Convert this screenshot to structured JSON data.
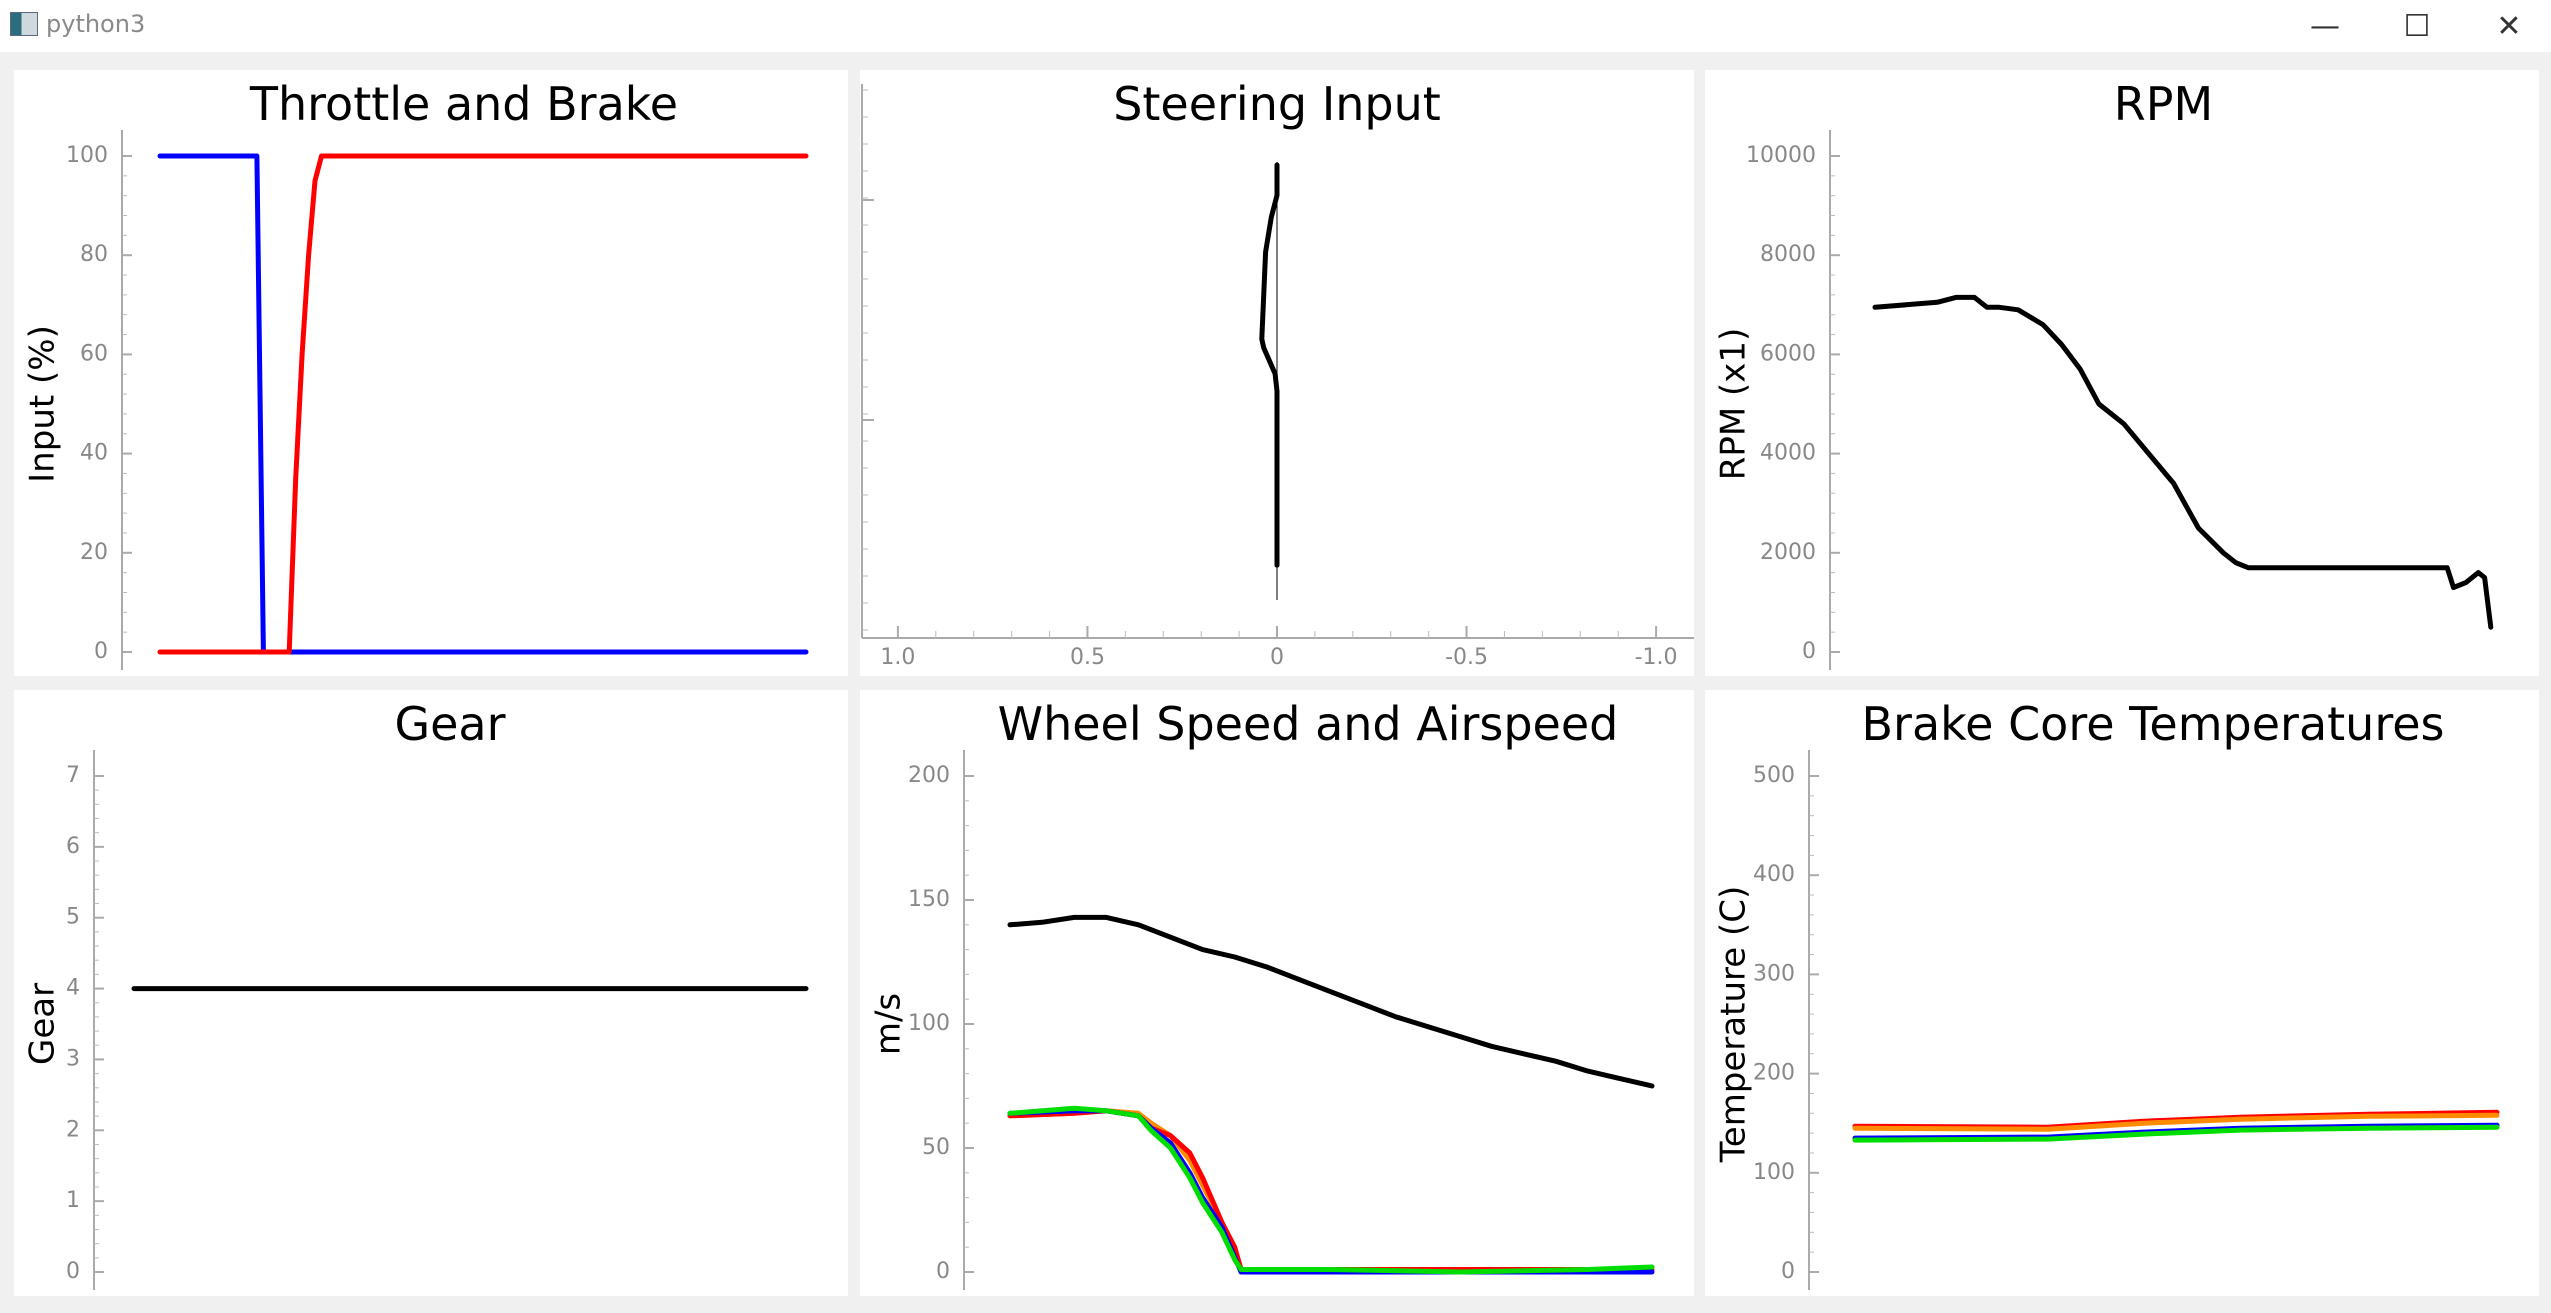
{
  "window": {
    "title": "python3",
    "minimize_glyph": "—",
    "maximize_glyph": "☐",
    "close_glyph": "✕"
  },
  "charts": [
    {
      "key": "throttle_brake",
      "type": "line",
      "title": "Throttle and Brake",
      "ylabel": "Input (%)",
      "xlabel": "",
      "ylim": [
        0,
        100
      ],
      "yticks": [
        0,
        20,
        40,
        60,
        80,
        100
      ],
      "xlim": [
        0,
        100
      ],
      "series": [
        {
          "color": "#0000ff",
          "x": [
            0,
            15,
            16,
            100
          ],
          "y": [
            100,
            100,
            0,
            0
          ]
        },
        {
          "color": "#ff0000",
          "x": [
            0,
            20,
            21,
            22,
            23,
            24,
            25,
            100
          ],
          "y": [
            0,
            0,
            35,
            60,
            80,
            95,
            100,
            100
          ]
        }
      ]
    },
    {
      "key": "steering",
      "type": "line",
      "title": "Steering Input",
      "ylabel": "",
      "xlabel": "",
      "xlim": [
        1.1,
        -1.1
      ],
      "xticks": [
        1.0,
        0.5,
        0,
        -0.5,
        -1.0
      ],
      "xtick_labels": [
        "1.0",
        "0.5",
        "0",
        "-0.5",
        "-1.0"
      ],
      "ylim": [
        0,
        100
      ],
      "series": [
        {
          "color": "#000000",
          "x": [
            0,
            0,
            0.015,
            0.03,
            0.035,
            0.04,
            0.035,
            0.02,
            0.005,
            0,
            0
          ],
          "y": [
            100,
            93,
            88,
            80,
            70,
            60,
            58,
            55,
            52,
            48,
            8
          ]
        }
      ]
    },
    {
      "key": "rpm",
      "type": "line",
      "title": "RPM",
      "ylabel": "RPM (x1)",
      "xlabel": "",
      "ylim": [
        0,
        10000
      ],
      "yticks": [
        0,
        2000,
        4000,
        6000,
        8000,
        10000
      ],
      "xlim": [
        0,
        100
      ],
      "series": [
        {
          "color": "#000000",
          "x": [
            0,
            5,
            10,
            13,
            16,
            18,
            20,
            23,
            27,
            30,
            33,
            36,
            40,
            44,
            48,
            52,
            56,
            58,
            60,
            65,
            70,
            80,
            90,
            92,
            93,
            95,
            97,
            98,
            99
          ],
          "y": [
            6950,
            7000,
            7050,
            7150,
            7150,
            6950,
            6950,
            6900,
            6600,
            6200,
            5700,
            5000,
            4600,
            4000,
            3400,
            2500,
            2000,
            1800,
            1700,
            1700,
            1700,
            1700,
            1700,
            1700,
            1300,
            1400,
            1600,
            1500,
            500
          ]
        }
      ]
    },
    {
      "key": "gear",
      "type": "line",
      "title": "Gear",
      "ylabel": "Gear",
      "xlabel": "",
      "ylim": [
        0,
        7
      ],
      "yticks": [
        0,
        1,
        2,
        3,
        4,
        5,
        6,
        7
      ],
      "xlim": [
        0,
        100
      ],
      "series": [
        {
          "color": "#000000",
          "x": [
            0,
            100
          ],
          "y": [
            4,
            4
          ]
        }
      ]
    },
    {
      "key": "speed",
      "type": "line",
      "title": "Wheel Speed and Airspeed",
      "ylabel": "m/s",
      "xlabel": "",
      "ylim": [
        0,
        200
      ],
      "yticks": [
        0,
        50,
        100,
        150,
        200
      ],
      "xlim": [
        0,
        100
      ],
      "series": [
        {
          "color": "#000000",
          "x": [
            0,
            5,
            10,
            15,
            20,
            25,
            30,
            35,
            40,
            45,
            50,
            55,
            60,
            65,
            70,
            75,
            80,
            85,
            90,
            95,
            100
          ],
          "y": [
            140,
            141,
            143,
            143,
            140,
            135,
            130,
            127,
            123,
            118,
            113,
            108,
            103,
            99,
            95,
            91,
            88,
            85,
            81,
            78,
            75
          ]
        },
        {
          "color": "#ff8c00",
          "x": [
            0,
            10,
            15,
            20,
            22,
            25,
            28,
            30,
            33,
            35,
            36,
            100
          ],
          "y": [
            63,
            64,
            65,
            64,
            60,
            55,
            45,
            35,
            20,
            8,
            0,
            0
          ]
        },
        {
          "color": "#ff0000",
          "x": [
            0,
            10,
            15,
            20,
            22,
            25,
            28,
            30,
            33,
            35,
            36,
            100
          ],
          "y": [
            63,
            64,
            65,
            63,
            58,
            55,
            48,
            38,
            20,
            10,
            1,
            1
          ]
        },
        {
          "color": "#0000ff",
          "x": [
            0,
            10,
            15,
            20,
            22,
            25,
            28,
            30,
            33,
            35,
            36,
            100
          ],
          "y": [
            64,
            65,
            65,
            63,
            58,
            52,
            40,
            30,
            18,
            6,
            0,
            0
          ]
        },
        {
          "color": "#00dd00",
          "x": [
            0,
            10,
            15,
            20,
            22,
            25,
            28,
            30,
            33,
            35,
            36,
            50,
            70,
            90,
            100
          ],
          "y": [
            64,
            66,
            65,
            63,
            57,
            50,
            38,
            28,
            16,
            5,
            1,
            1,
            0,
            1,
            2
          ]
        }
      ]
    },
    {
      "key": "brake_temps",
      "type": "line",
      "title": "Brake Core Temperatures",
      "ylabel": "Temperature (C)",
      "xlabel": "",
      "ylim": [
        0,
        500
      ],
      "yticks": [
        0,
        100,
        200,
        300,
        400,
        500
      ],
      "xlim": [
        0,
        100
      ],
      "series": [
        {
          "color": "#ff0000",
          "x": [
            0,
            30,
            45,
            60,
            80,
            100
          ],
          "y": [
            147,
            146,
            152,
            156,
            159,
            161
          ]
        },
        {
          "color": "#ff8c00",
          "x": [
            0,
            30,
            45,
            60,
            80,
            100
          ],
          "y": [
            145,
            144,
            150,
            154,
            157,
            158
          ]
        },
        {
          "color": "#0000ff",
          "x": [
            0,
            30,
            45,
            60,
            80,
            100
          ],
          "y": [
            135,
            136,
            141,
            145,
            147,
            148
          ]
        },
        {
          "color": "#00dd00",
          "x": [
            0,
            30,
            45,
            60,
            80,
            100
          ],
          "y": [
            133,
            134,
            139,
            143,
            145,
            146
          ]
        }
      ]
    }
  ]
}
